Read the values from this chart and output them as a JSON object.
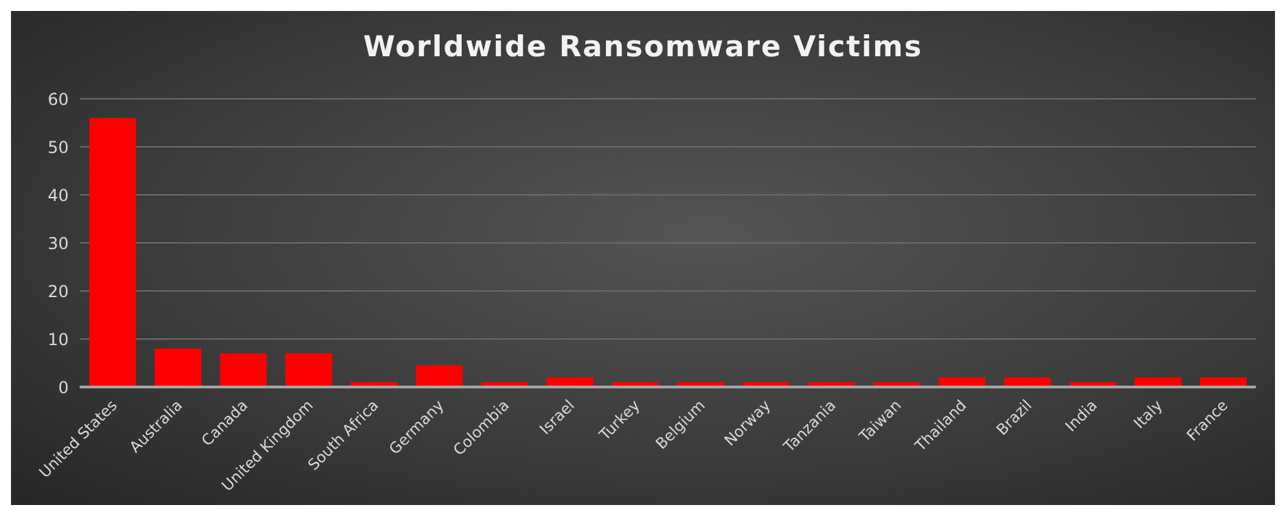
{
  "chart_data": {
    "type": "bar",
    "title": "Worldwide Ransomware Victims",
    "categories": [
      "United States",
      "Australia",
      "Canada",
      "United Kingdom",
      "South Africa",
      "Germany",
      "Colombia",
      "Israel",
      "Turkey",
      "Belgium",
      "Norway",
      "Tanzania",
      "Taiwan",
      "Thailand",
      "Brazil",
      "India",
      "Italy",
      "France"
    ],
    "values": [
      56,
      8,
      7,
      7,
      1,
      4.5,
      1,
      2,
      1,
      1,
      1,
      1,
      1,
      2,
      2,
      1,
      2,
      2
    ],
    "color": "#ff0000",
    "ylim": [
      0,
      60
    ],
    "yticks": [
      0,
      10,
      20,
      30,
      40,
      50,
      60
    ],
    "grid": "y"
  }
}
